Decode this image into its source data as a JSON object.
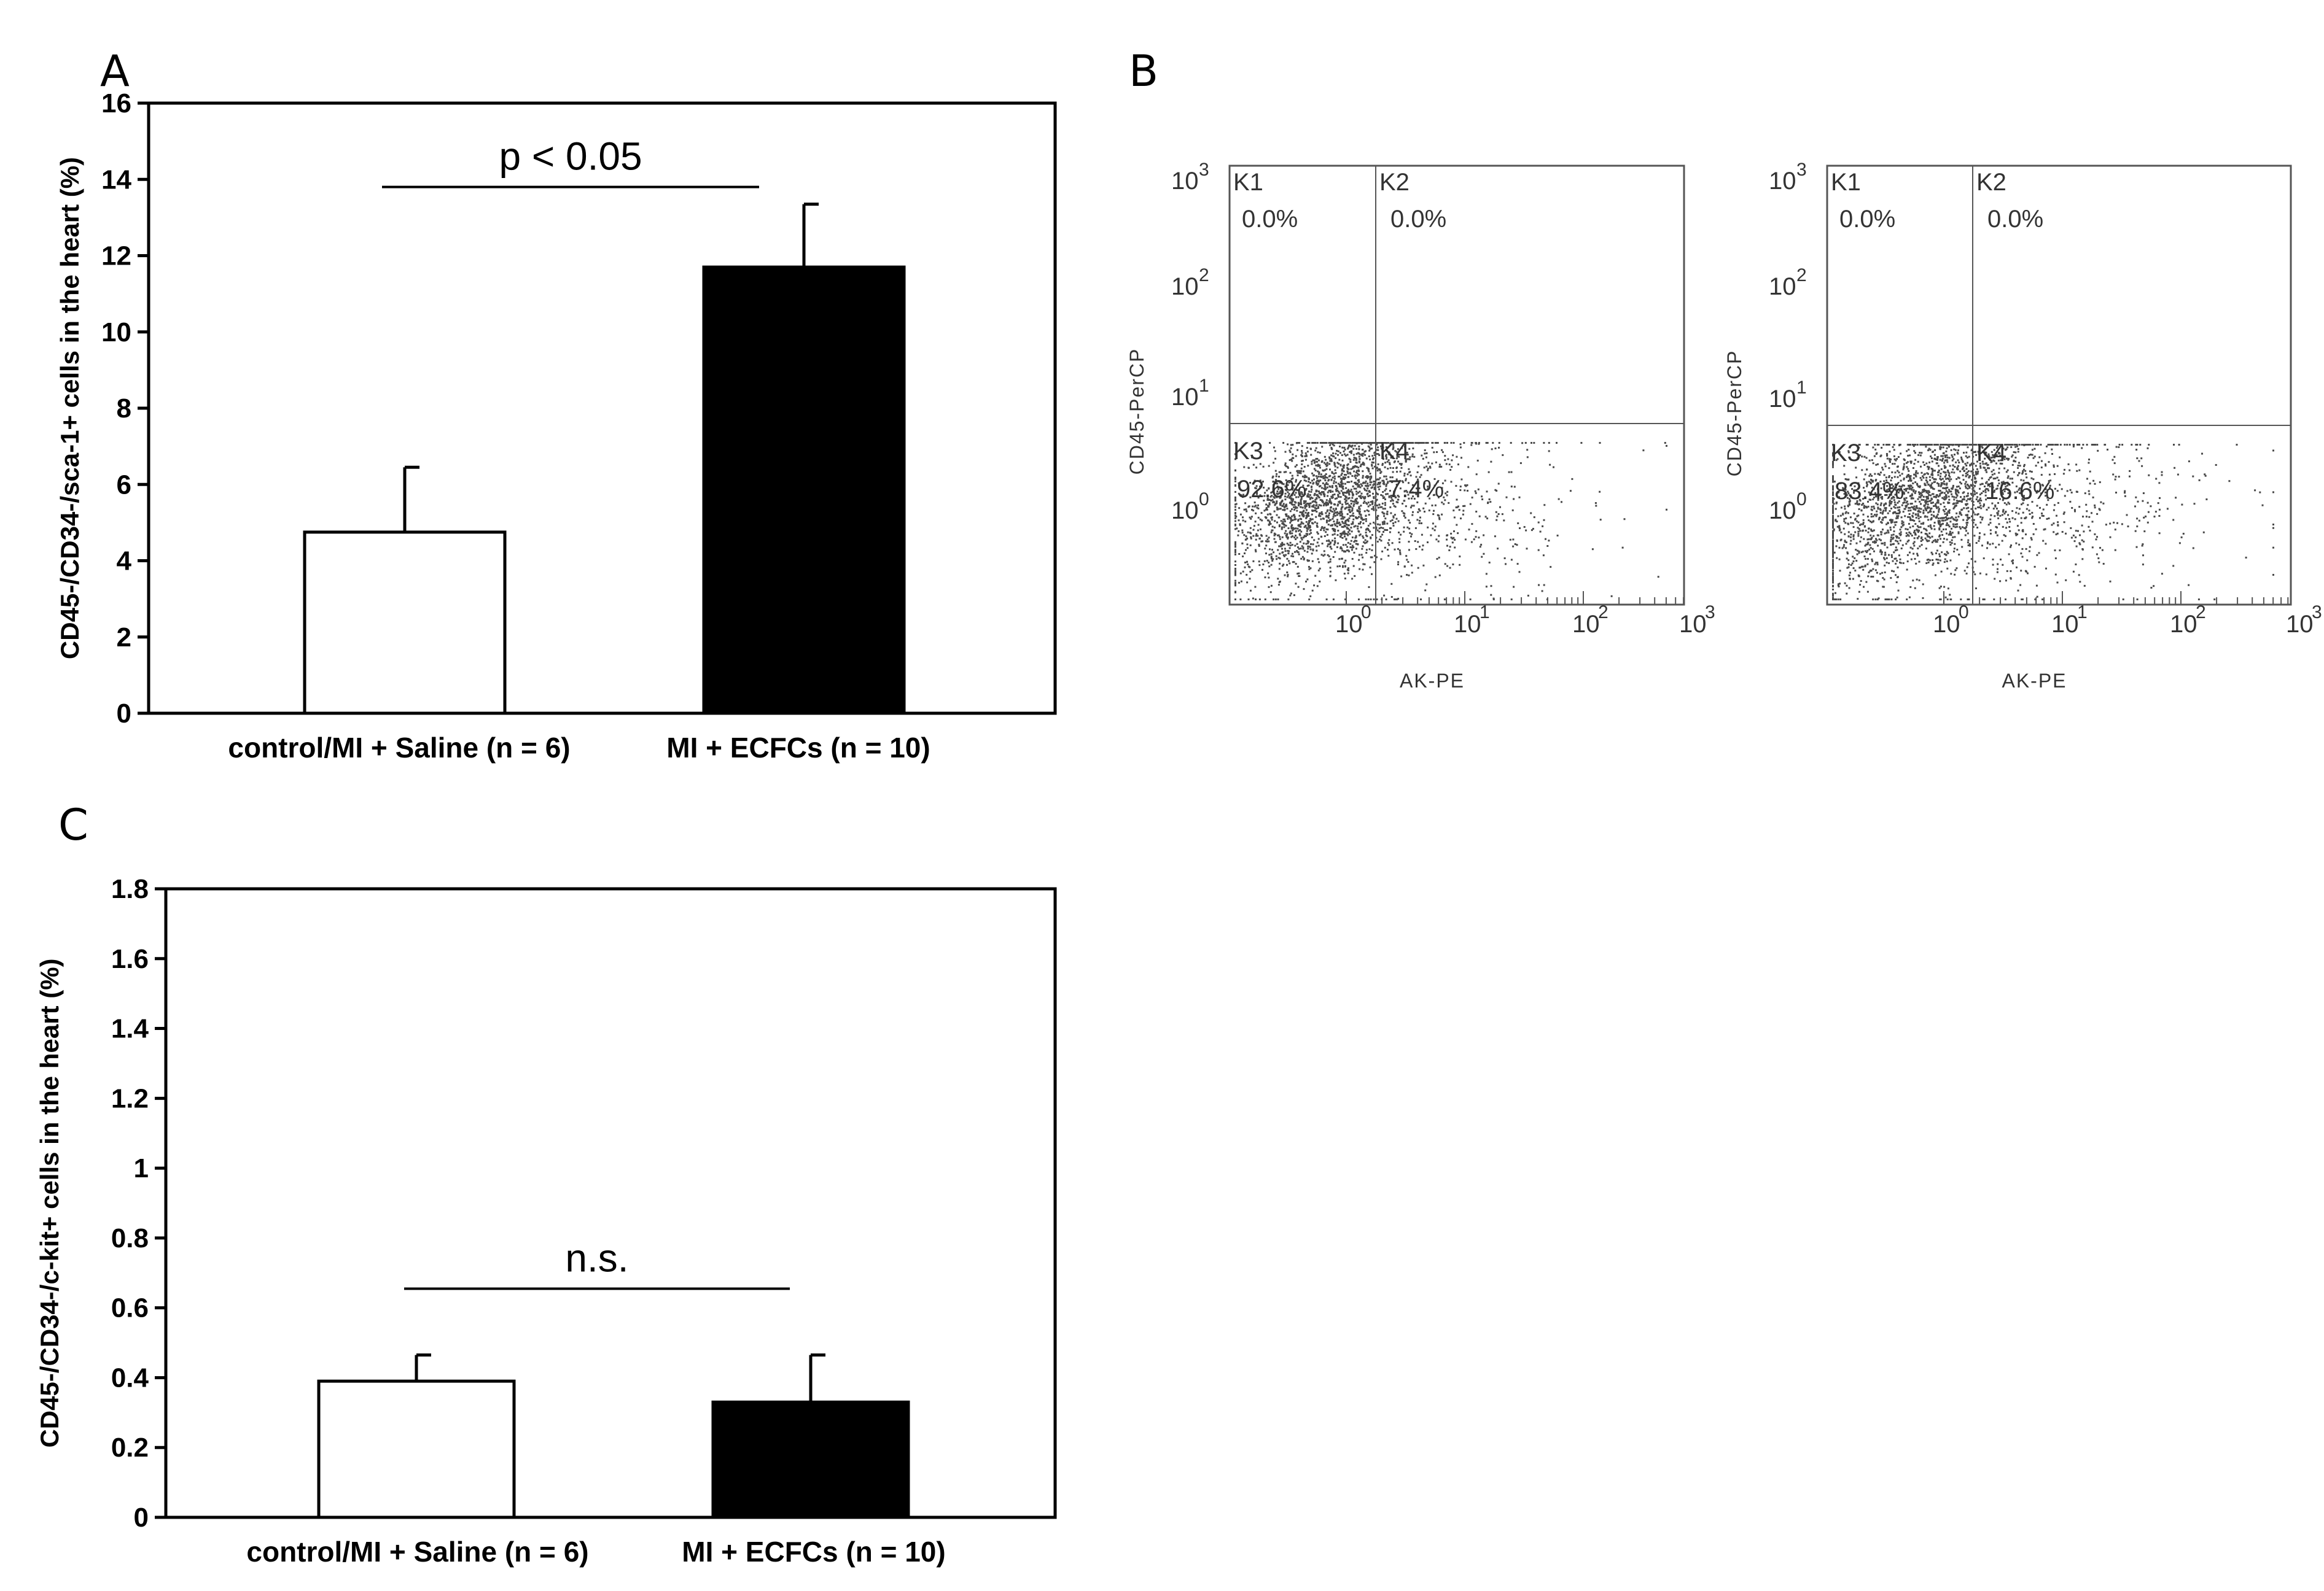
{
  "panels": {
    "a": {
      "letter": "A"
    },
    "b": {
      "letter": "B"
    },
    "c": {
      "letter": "C"
    }
  },
  "chart_data": [
    {
      "panel": "A",
      "type": "bar",
      "categories": [
        "control/MI + Saline (n = 6)",
        "MI + ECFCs (n = 10)"
      ],
      "values": [
        4.75,
        11.7
      ],
      "errors": [
        1.7,
        1.65
      ],
      "bar_colors": [
        "#ffffff",
        "#000000"
      ],
      "ylabel": "CD45-/CD34-/sca-1+ cells in the heart (%)",
      "ylim": [
        0,
        16
      ],
      "yticks": [
        "0",
        "2",
        "4",
        "6",
        "8",
        "10",
        "12",
        "14",
        "16"
      ],
      "annotation": "p < 0.05",
      "grid": false
    },
    {
      "panel": "C",
      "type": "bar",
      "categories": [
        "control/MI + Saline (n = 6)",
        "MI + ECFCs (n = 10)"
      ],
      "values": [
        0.39,
        0.33
      ],
      "errors": [
        0.075,
        0.135
      ],
      "bar_colors": [
        "#ffffff",
        "#000000"
      ],
      "ylabel": "CD45-/CD34-/c-kit+ cells in the heart (%)",
      "ylim": [
        0,
        1.8
      ],
      "yticks": [
        "0",
        "0.2",
        "0.4",
        "0.6",
        "0.8",
        "1",
        "1.2",
        "1.4",
        "1.6",
        "1.8"
      ],
      "annotation": "n.s.",
      "grid": false
    },
    {
      "panel": "B",
      "type": "scatter",
      "plots": [
        {
          "xlabel": "AK-PE",
          "ylabel": "CD45-PerCP",
          "quadrants": [
            {
              "label": "K1",
              "value": "0.0%"
            },
            {
              "label": "K2",
              "value": "0.0%"
            },
            {
              "label": "K3",
              "value": "92.6%"
            },
            {
              "label": "K4",
              "value": "7.4%"
            }
          ]
        },
        {
          "xlabel": "AK-PE",
          "ylabel": "CD45-PerCP",
          "quadrants": [
            {
              "label": "K1",
              "value": "0.0%"
            },
            {
              "label": "K2",
              "value": "0.0%"
            },
            {
              "label": "K3",
              "value": "83.4%"
            },
            {
              "label": "K4",
              "value": "16.6%"
            }
          ]
        }
      ],
      "xticks": [
        "10",
        "10",
        "10",
        "10"
      ],
      "xtick_exponents": [
        "0",
        "1",
        "2",
        "3"
      ],
      "yticks": [
        "10",
        "10",
        "10",
        "10"
      ],
      "ytick_exponents": [
        "0",
        "1",
        "2",
        "3"
      ]
    }
  ]
}
